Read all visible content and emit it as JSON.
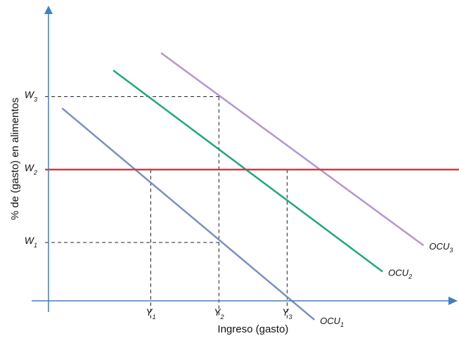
{
  "chart_data": {
    "type": "line",
    "title": "",
    "xlabel": "Ingreso (gasto)",
    "ylabel": "% de (gasto) en alimentos",
    "xlim": [
      0,
      10
    ],
    "ylim": [
      0,
      10
    ],
    "grid": false,
    "legend": "none",
    "x_ticks": [
      {
        "label": "Y",
        "sub": "1",
        "value": 3
      },
      {
        "label": "Y",
        "sub": "2",
        "value": 5
      },
      {
        "label": "Y",
        "sub": "3",
        "value": 7
      }
    ],
    "y_ticks": [
      {
        "label": "W",
        "sub": "1",
        "value": 2
      },
      {
        "label": "W",
        "sub": "2",
        "value": 4.5
      },
      {
        "label": "W",
        "sub": "3",
        "value": 7
      }
    ],
    "series": [
      {
        "name": "OCU",
        "sub": "1",
        "color": "#7b8fbf",
        "x": [
          0.4,
          7.8
        ],
        "y": [
          6.6,
          -0.65
        ]
      },
      {
        "name": "OCU",
        "sub": "2",
        "color": "#1ea77f",
        "x": [
          1.9,
          9.8
        ],
        "y": [
          7.9,
          1.0
        ]
      },
      {
        "name": "OCU",
        "sub": "3",
        "color": "#b496d0",
        "x": [
          3.3,
          11.0
        ],
        "y": [
          8.5,
          1.9
        ]
      },
      {
        "name": "",
        "color": "#c0454b",
        "x": [
          -0.1,
          12.4
        ],
        "y": [
          4.5,
          4.5
        ]
      }
    ],
    "guides": [
      {
        "x": [
          3,
          3
        ],
        "y": [
          4.5,
          -0.6
        ]
      },
      {
        "x": [
          5,
          5
        ],
        "y": [
          7,
          -0.6
        ]
      },
      {
        "x": [
          7,
          7
        ],
        "y": [
          4.5,
          -0.6
        ]
      },
      {
        "x": [
          -0.1,
          5
        ],
        "y": [
          7,
          7
        ]
      },
      {
        "x": [
          -0.1,
          5
        ],
        "y": [
          2,
          2
        ]
      }
    ]
  }
}
